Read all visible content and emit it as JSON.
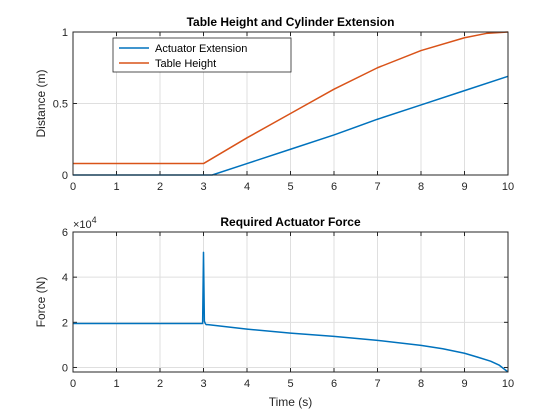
{
  "chart_data": [
    {
      "type": "line",
      "title": "Table Height and Cylinder Extension",
      "xlabel": "",
      "ylabel": "Distance (m)",
      "xlim": [
        0,
        10
      ],
      "ylim": [
        0,
        1
      ],
      "xticks": [
        "0",
        "1",
        "2",
        "3",
        "4",
        "5",
        "6",
        "7",
        "8",
        "9",
        "10"
      ],
      "yticks": [
        "0",
        "0.5",
        "1"
      ],
      "grid": true,
      "legend": "top-left",
      "series": [
        {
          "name": "Actuator Extension",
          "color": "#0072BD",
          "x": [
            0,
            3,
            3.2,
            4,
            5,
            6,
            7,
            8,
            9,
            10
          ],
          "y": [
            0,
            0,
            0,
            0.08,
            0.18,
            0.28,
            0.39,
            0.49,
            0.59,
            0.69
          ]
        },
        {
          "name": "Table Height",
          "color": "#D95319",
          "x": [
            0,
            3,
            3.5,
            4,
            5,
            6,
            7,
            8,
            9,
            9.5,
            10
          ],
          "y": [
            0.08,
            0.08,
            0.17,
            0.26,
            0.43,
            0.6,
            0.75,
            0.87,
            0.96,
            0.99,
            1.0
          ]
        }
      ]
    },
    {
      "type": "line",
      "title": "Required Actuator Force",
      "xlabel": "Time (s)",
      "ylabel": "Force (N)",
      "exponent_label": "×10",
      "exponent_power": "4",
      "xlim": [
        0,
        10
      ],
      "ylim": [
        -2000,
        60000
      ],
      "yticks_values": [
        0,
        20000,
        40000,
        60000
      ],
      "xticks": [
        "0",
        "1",
        "2",
        "3",
        "4",
        "5",
        "6",
        "7",
        "8",
        "9",
        "10"
      ],
      "yticks": [
        "0",
        "2",
        "4",
        "6"
      ],
      "grid": true,
      "series": [
        {
          "name": "",
          "color": "#0072BD",
          "x": [
            0,
            2.98,
            3.0,
            3.02,
            3.04,
            3.06,
            3.1,
            4,
            5,
            6,
            7,
            8,
            8.5,
            9,
            9.3,
            9.6,
            9.8,
            10
          ],
          "y": [
            19500,
            19500,
            51000,
            20500,
            19500,
            19000,
            19000,
            17000,
            15200,
            13800,
            12000,
            9800,
            8300,
            6300,
            4600,
            2800,
            1000,
            -2000
          ]
        }
      ]
    }
  ]
}
